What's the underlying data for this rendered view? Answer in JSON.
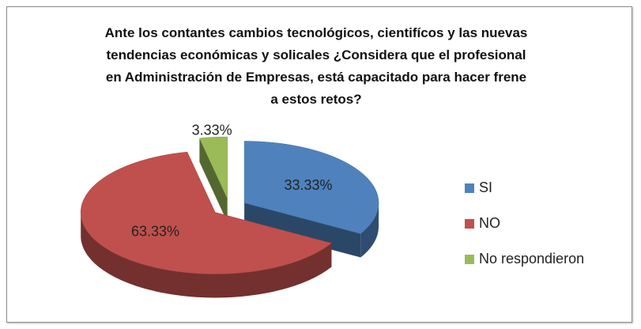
{
  "chart_data": {
    "type": "pie3d",
    "title": "Ante los contantes cambios tecnológicos, cientifícos y las nuevas tendencias económicas y solicales ¿Considera que el profesional en Administración de Empresas, está capacitado para hacer frene a estos retos?",
    "categories": [
      "SI",
      "NO",
      "No respondieron"
    ],
    "values": [
      33.33,
      63.33,
      3.33
    ],
    "value_labels": [
      "33.33%",
      "63.33%",
      "3.33%"
    ],
    "colors": [
      "#4f81bd",
      "#c0504d",
      "#9bbb59"
    ],
    "legend": "right"
  }
}
